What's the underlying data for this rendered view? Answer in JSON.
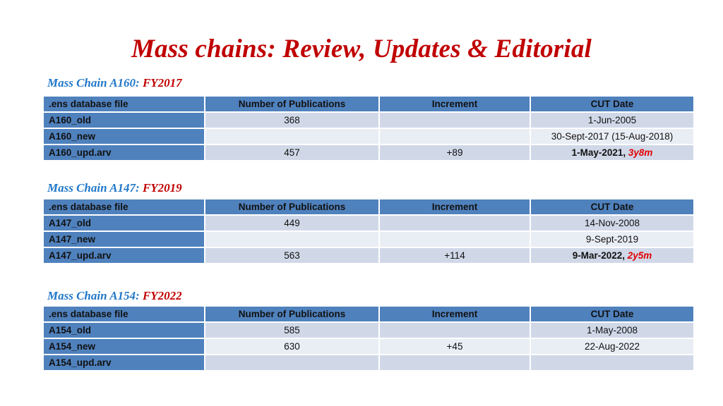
{
  "slide": {
    "title": "Mass chains: Review, Updates & Editorial"
  },
  "columns": [
    ".ens database file",
    "Number of Publications",
    "Increment",
    "CUT Date"
  ],
  "sections": [
    {
      "label_prefix": "Mass Chain A160: ",
      "label_fy": "FY2017",
      "rows": [
        {
          "file": "A160_old",
          "pubs": "368",
          "increment": "",
          "cut_date": "1-Jun-2005",
          "duration": ""
        },
        {
          "file": "A160_new",
          "pubs": "",
          "increment": "",
          "cut_date": "30-Sept-2017 (15-Aug-2018)",
          "duration": ""
        },
        {
          "file": "A160_upd.arv",
          "pubs": "457",
          "increment": "+89",
          "cut_date": "1-May-2021, ",
          "duration": "3y8m"
        }
      ]
    },
    {
      "label_prefix": "Mass Chain A147: ",
      "label_fy": "FY2019",
      "rows": [
        {
          "file": "A147_old",
          "pubs": "449",
          "increment": "",
          "cut_date": "14-Nov-2008",
          "duration": ""
        },
        {
          "file": "A147_new",
          "pubs": "",
          "increment": "",
          "cut_date": "9-Sept-2019",
          "duration": ""
        },
        {
          "file": "A147_upd.arv",
          "pubs": "563",
          "increment": "+114",
          "cut_date": "9-Mar-2022, ",
          "duration": "2y5m"
        }
      ]
    },
    {
      "label_prefix": "Mass Chain A154: ",
      "label_fy": "FY2022",
      "rows": [
        {
          "file": "A154_old",
          "pubs": "585",
          "increment": "",
          "cut_date": "1-May-2008",
          "duration": ""
        },
        {
          "file": "A154_new",
          "pubs": "630",
          "increment": "+45",
          "cut_date": "22-Aug-2022",
          "duration": ""
        },
        {
          "file": "A154_upd.arv",
          "pubs": "",
          "increment": "",
          "cut_date": "",
          "duration": ""
        }
      ]
    }
  ],
  "colors": {
    "title": "#c00000",
    "section_label": "#1f77c8",
    "fiscal_year": "#c00000",
    "header_fill": "#4f81bd",
    "row_odd_fill": "#d0d8e8",
    "row_even_fill": "#e9edf4",
    "duration_text": "#e00000"
  }
}
